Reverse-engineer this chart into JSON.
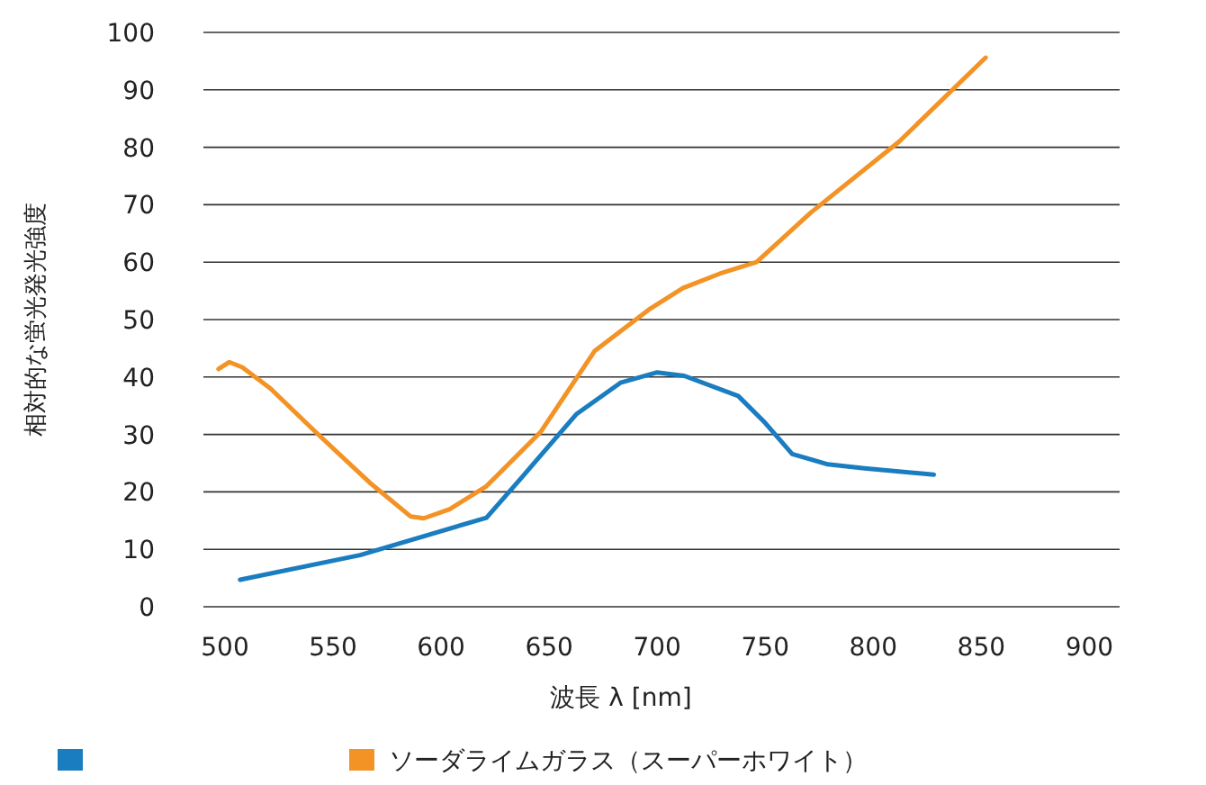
{
  "chart_data": {
    "type": "line",
    "xlabel": "波長 λ [nm]",
    "ylabel": "相対的な蛍光発光強度",
    "xlim": [
      490,
      914
    ],
    "xticks": [
      500,
      550,
      600,
      650,
      700,
      750,
      800,
      850,
      900
    ],
    "ylim": [
      0,
      100
    ],
    "yticks": [
      0,
      10,
      20,
      30,
      40,
      50,
      60,
      70,
      80,
      90,
      100
    ],
    "grid": "y",
    "legend": "bottom",
    "line_style": "solid",
    "marker": "none",
    "series": [
      {
        "color": "#1a7dc0",
        "x": [
          507,
          562.5,
          621,
          637.5,
          662.5,
          683,
          700,
          712.5,
          737.5,
          750,
          762.5,
          779,
          796,
          828
        ],
        "values": [
          4.7,
          9,
          15.5,
          22.6,
          33.5,
          39,
          40.8,
          40.2,
          36.7,
          32,
          26.6,
          24.8,
          24.1,
          23
        ]
      },
      {
        "name": "ソーダライムガラス（スーパーホワイト）",
        "color": "#f39325",
        "x": [
          497,
          502,
          508,
          521,
          542,
          567,
          586,
          592,
          604,
          621,
          646,
          671,
          696,
          712,
          729,
          746,
          771,
          812,
          852
        ],
        "values": [
          41.4,
          42.6,
          41.7,
          38,
          30.4,
          21.6,
          15.7,
          15.4,
          17,
          21,
          30.4,
          44.5,
          51.7,
          55.5,
          58,
          60,
          68.6,
          81,
          95.6
        ]
      }
    ]
  }
}
